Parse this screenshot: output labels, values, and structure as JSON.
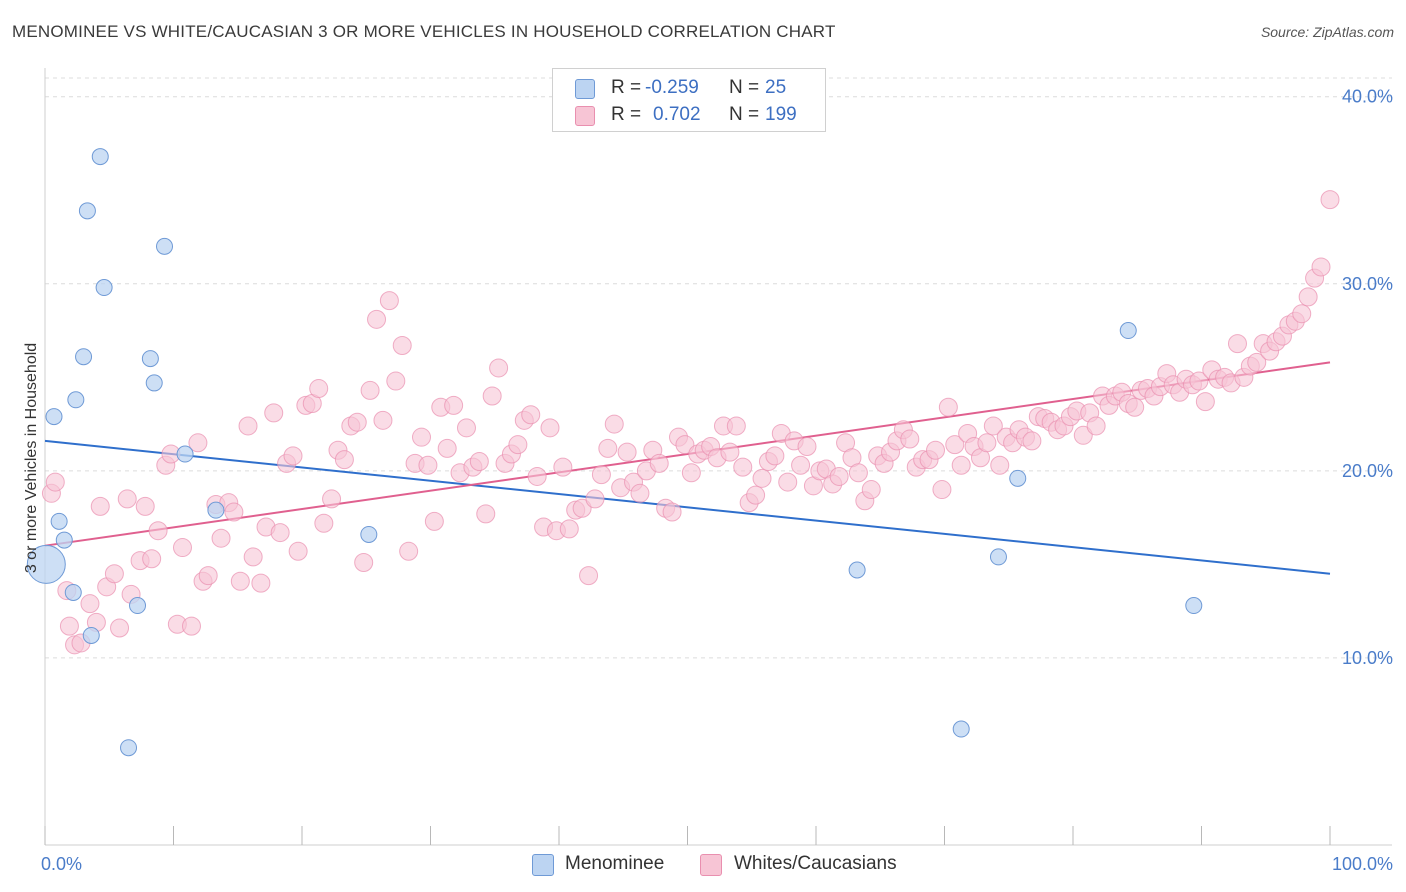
{
  "title": "MENOMINEE VS WHITE/CAUCASIAN 3 OR MORE VEHICLES IN HOUSEHOLD CORRELATION CHART",
  "source": "Source: ZipAtlas.com",
  "legend": {
    "r_label": "R =",
    "n_label": "N =",
    "rows": [
      {
        "r": "-0.259",
        "n": "25"
      },
      {
        "r": "0.702",
        "n": "199"
      }
    ]
  },
  "bottom_legend": [
    "Menominee",
    "Whites/Caucasians"
  ],
  "colors": {
    "blue_fill": "#bcd4f2",
    "blue_stroke": "#6f9ad6",
    "blue_line": "#2f6fcc",
    "pink_fill": "#f7c5d5",
    "pink_stroke": "#e98faf",
    "pink_line": "#e0608f"
  },
  "chart_data": {
    "type": "scatter",
    "title": "MENOMINEE VS WHITE/CAUCASIAN 3 OR MORE VEHICLES IN HOUSEHOLD CORRELATION CHART",
    "xlabel": "",
    "ylabel": "3 or more Vehicles in Household",
    "xlim": [
      0,
      100
    ],
    "ylim": [
      0,
      41
    ],
    "x_tick_labels": [
      "0.0%",
      "100.0%"
    ],
    "y_ticks": [
      10,
      20,
      30,
      40
    ],
    "y_tick_labels": [
      "10.0%",
      "20.0%",
      "30.0%",
      "40.0%"
    ],
    "grid": true,
    "series": [
      {
        "name": "Menominee",
        "points": [
          [
            4.3,
            36.8
          ],
          [
            3.3,
            33.9
          ],
          [
            9.3,
            32.0
          ],
          [
            4.6,
            29.8
          ],
          [
            3.0,
            26.1
          ],
          [
            8.2,
            26.0
          ],
          [
            8.5,
            24.7
          ],
          [
            2.4,
            23.8
          ],
          [
            0.7,
            22.9
          ],
          [
            10.9,
            20.9
          ],
          [
            13.3,
            17.9
          ],
          [
            1.1,
            17.3
          ],
          [
            1.5,
            16.3
          ],
          [
            0.1,
            15.0
          ],
          [
            2.2,
            13.5
          ],
          [
            7.2,
            12.8
          ],
          [
            3.6,
            11.2
          ],
          [
            6.5,
            5.2
          ],
          [
            25.2,
            16.6
          ],
          [
            84.3,
            27.5
          ],
          [
            75.7,
            19.6
          ],
          [
            74.2,
            15.4
          ],
          [
            63.2,
            14.7
          ],
          [
            89.4,
            12.8
          ],
          [
            71.3,
            6.2
          ]
        ],
        "trend": [
          [
            0,
            21.6
          ],
          [
            100,
            14.5
          ]
        ]
      },
      {
        "name": "Whites/Caucasians",
        "points": [
          [
            0.5,
            18.8
          ],
          [
            0.8,
            19.4
          ],
          [
            1.7,
            13.6
          ],
          [
            1.9,
            11.7
          ],
          [
            2.3,
            10.7
          ],
          [
            2.8,
            10.8
          ],
          [
            3.5,
            12.9
          ],
          [
            4.0,
            11.9
          ],
          [
            4.3,
            18.1
          ],
          [
            4.8,
            13.8
          ],
          [
            5.4,
            14.5
          ],
          [
            5.8,
            11.6
          ],
          [
            6.4,
            18.5
          ],
          [
            6.7,
            13.4
          ],
          [
            7.4,
            15.2
          ],
          [
            7.8,
            18.1
          ],
          [
            8.3,
            15.3
          ],
          [
            8.8,
            16.8
          ],
          [
            9.4,
            20.3
          ],
          [
            9.8,
            20.9
          ],
          [
            10.3,
            11.8
          ],
          [
            10.7,
            15.9
          ],
          [
            11.4,
            11.7
          ],
          [
            11.9,
            21.5
          ],
          [
            12.3,
            14.1
          ],
          [
            12.7,
            14.4
          ],
          [
            13.3,
            18.2
          ],
          [
            13.7,
            16.4
          ],
          [
            14.3,
            18.3
          ],
          [
            14.7,
            17.8
          ],
          [
            15.2,
            14.1
          ],
          [
            15.8,
            22.4
          ],
          [
            16.2,
            15.4
          ],
          [
            16.8,
            14.0
          ],
          [
            17.2,
            17.0
          ],
          [
            17.8,
            23.1
          ],
          [
            18.3,
            16.7
          ],
          [
            18.8,
            20.4
          ],
          [
            19.3,
            20.8
          ],
          [
            19.7,
            15.7
          ],
          [
            20.3,
            23.5
          ],
          [
            20.8,
            23.6
          ],
          [
            21.3,
            24.4
          ],
          [
            21.7,
            17.2
          ],
          [
            22.3,
            18.5
          ],
          [
            22.8,
            21.1
          ],
          [
            23.3,
            20.6
          ],
          [
            23.8,
            22.4
          ],
          [
            24.3,
            22.6
          ],
          [
            24.8,
            15.1
          ],
          [
            25.3,
            24.3
          ],
          [
            25.8,
            28.1
          ],
          [
            26.3,
            22.7
          ],
          [
            26.8,
            29.1
          ],
          [
            27.3,
            24.8
          ],
          [
            27.8,
            26.7
          ],
          [
            28.3,
            15.7
          ],
          [
            28.8,
            20.4
          ],
          [
            29.3,
            21.8
          ],
          [
            29.8,
            20.3
          ],
          [
            30.3,
            17.3
          ],
          [
            30.8,
            23.4
          ],
          [
            31.3,
            21.2
          ],
          [
            31.8,
            23.5
          ],
          [
            32.3,
            19.9
          ],
          [
            32.8,
            22.3
          ],
          [
            33.3,
            20.2
          ],
          [
            33.8,
            20.5
          ],
          [
            34.3,
            17.7
          ],
          [
            34.8,
            24.0
          ],
          [
            35.3,
            25.5
          ],
          [
            35.8,
            20.4
          ],
          [
            36.3,
            20.9
          ],
          [
            36.8,
            21.4
          ],
          [
            37.3,
            22.7
          ],
          [
            37.8,
            23.0
          ],
          [
            38.3,
            19.7
          ],
          [
            38.8,
            17.0
          ],
          [
            39.3,
            22.3
          ],
          [
            39.8,
            16.8
          ],
          [
            40.3,
            20.2
          ],
          [
            40.8,
            16.9
          ],
          [
            41.3,
            17.9
          ],
          [
            41.8,
            18.0
          ],
          [
            42.3,
            14.4
          ],
          [
            42.8,
            18.5
          ],
          [
            43.3,
            19.8
          ],
          [
            43.8,
            21.2
          ],
          [
            44.3,
            22.5
          ],
          [
            44.8,
            19.1
          ],
          [
            45.3,
            21.0
          ],
          [
            45.8,
            19.4
          ],
          [
            46.3,
            18.8
          ],
          [
            46.8,
            20.0
          ],
          [
            47.3,
            21.1
          ],
          [
            47.8,
            20.4
          ],
          [
            48.3,
            18.0
          ],
          [
            48.8,
            17.8
          ],
          [
            49.3,
            21.8
          ],
          [
            49.8,
            21.4
          ],
          [
            50.3,
            19.9
          ],
          [
            50.8,
            20.9
          ],
          [
            51.3,
            21.1
          ],
          [
            51.8,
            21.3
          ],
          [
            52.3,
            20.7
          ],
          [
            52.8,
            22.4
          ],
          [
            53.3,
            21.0
          ],
          [
            53.8,
            22.4
          ],
          [
            54.3,
            20.2
          ],
          [
            54.8,
            18.3
          ],
          [
            55.3,
            18.7
          ],
          [
            55.8,
            19.6
          ],
          [
            56.3,
            20.5
          ],
          [
            56.8,
            20.8
          ],
          [
            57.3,
            22.0
          ],
          [
            57.8,
            19.4
          ],
          [
            58.3,
            21.6
          ],
          [
            58.8,
            20.3
          ],
          [
            59.3,
            21.3
          ],
          [
            59.8,
            19.2
          ],
          [
            60.3,
            20.0
          ],
          [
            60.8,
            20.1
          ],
          [
            61.3,
            19.3
          ],
          [
            61.8,
            19.7
          ],
          [
            62.3,
            21.5
          ],
          [
            62.8,
            20.7
          ],
          [
            63.3,
            19.9
          ],
          [
            63.8,
            18.4
          ],
          [
            64.3,
            19.0
          ],
          [
            64.8,
            20.8
          ],
          [
            65.3,
            20.4
          ],
          [
            65.8,
            21.0
          ],
          [
            66.3,
            21.6
          ],
          [
            66.8,
            22.2
          ],
          [
            67.3,
            21.7
          ],
          [
            67.8,
            20.2
          ],
          [
            68.3,
            20.6
          ],
          [
            68.8,
            20.6
          ],
          [
            69.3,
            21.1
          ],
          [
            69.8,
            19.0
          ],
          [
            70.3,
            23.4
          ],
          [
            70.8,
            21.4
          ],
          [
            71.3,
            20.3
          ],
          [
            71.8,
            22.0
          ],
          [
            72.3,
            21.3
          ],
          [
            72.8,
            20.7
          ],
          [
            73.3,
            21.5
          ],
          [
            73.8,
            22.4
          ],
          [
            74.3,
            20.3
          ],
          [
            74.8,
            21.8
          ],
          [
            75.3,
            21.5
          ],
          [
            75.8,
            22.2
          ],
          [
            76.3,
            21.8
          ],
          [
            76.8,
            21.6
          ],
          [
            77.3,
            22.9
          ],
          [
            77.8,
            22.8
          ],
          [
            78.3,
            22.6
          ],
          [
            78.8,
            22.2
          ],
          [
            79.3,
            22.4
          ],
          [
            79.8,
            22.9
          ],
          [
            80.3,
            23.2
          ],
          [
            80.8,
            21.9
          ],
          [
            81.3,
            23.1
          ],
          [
            81.8,
            22.4
          ],
          [
            82.3,
            24.0
          ],
          [
            82.8,
            23.5
          ],
          [
            83.3,
            24.0
          ],
          [
            83.8,
            24.2
          ],
          [
            84.3,
            23.6
          ],
          [
            84.8,
            23.4
          ],
          [
            85.3,
            24.3
          ],
          [
            85.8,
            24.4
          ],
          [
            86.3,
            24.0
          ],
          [
            86.8,
            24.5
          ],
          [
            87.3,
            25.2
          ],
          [
            87.8,
            24.6
          ],
          [
            88.3,
            24.2
          ],
          [
            88.8,
            24.9
          ],
          [
            89.3,
            24.6
          ],
          [
            89.8,
            24.8
          ],
          [
            90.3,
            23.7
          ],
          [
            90.8,
            25.4
          ],
          [
            91.3,
            24.9
          ],
          [
            91.8,
            25.0
          ],
          [
            92.3,
            24.7
          ],
          [
            92.8,
            26.8
          ],
          [
            93.3,
            25.0
          ],
          [
            93.8,
            25.6
          ],
          [
            94.3,
            25.8
          ],
          [
            94.8,
            26.8
          ],
          [
            95.3,
            26.4
          ],
          [
            95.8,
            26.9
          ],
          [
            96.3,
            27.2
          ],
          [
            96.8,
            27.8
          ],
          [
            97.3,
            28.0
          ],
          [
            97.8,
            28.4
          ],
          [
            98.3,
            29.3
          ],
          [
            98.8,
            30.3
          ],
          [
            99.3,
            30.9
          ],
          [
            100.0,
            34.5
          ]
        ],
        "trend": [
          [
            0,
            16.0
          ],
          [
            100,
            25.8
          ]
        ]
      }
    ]
  }
}
